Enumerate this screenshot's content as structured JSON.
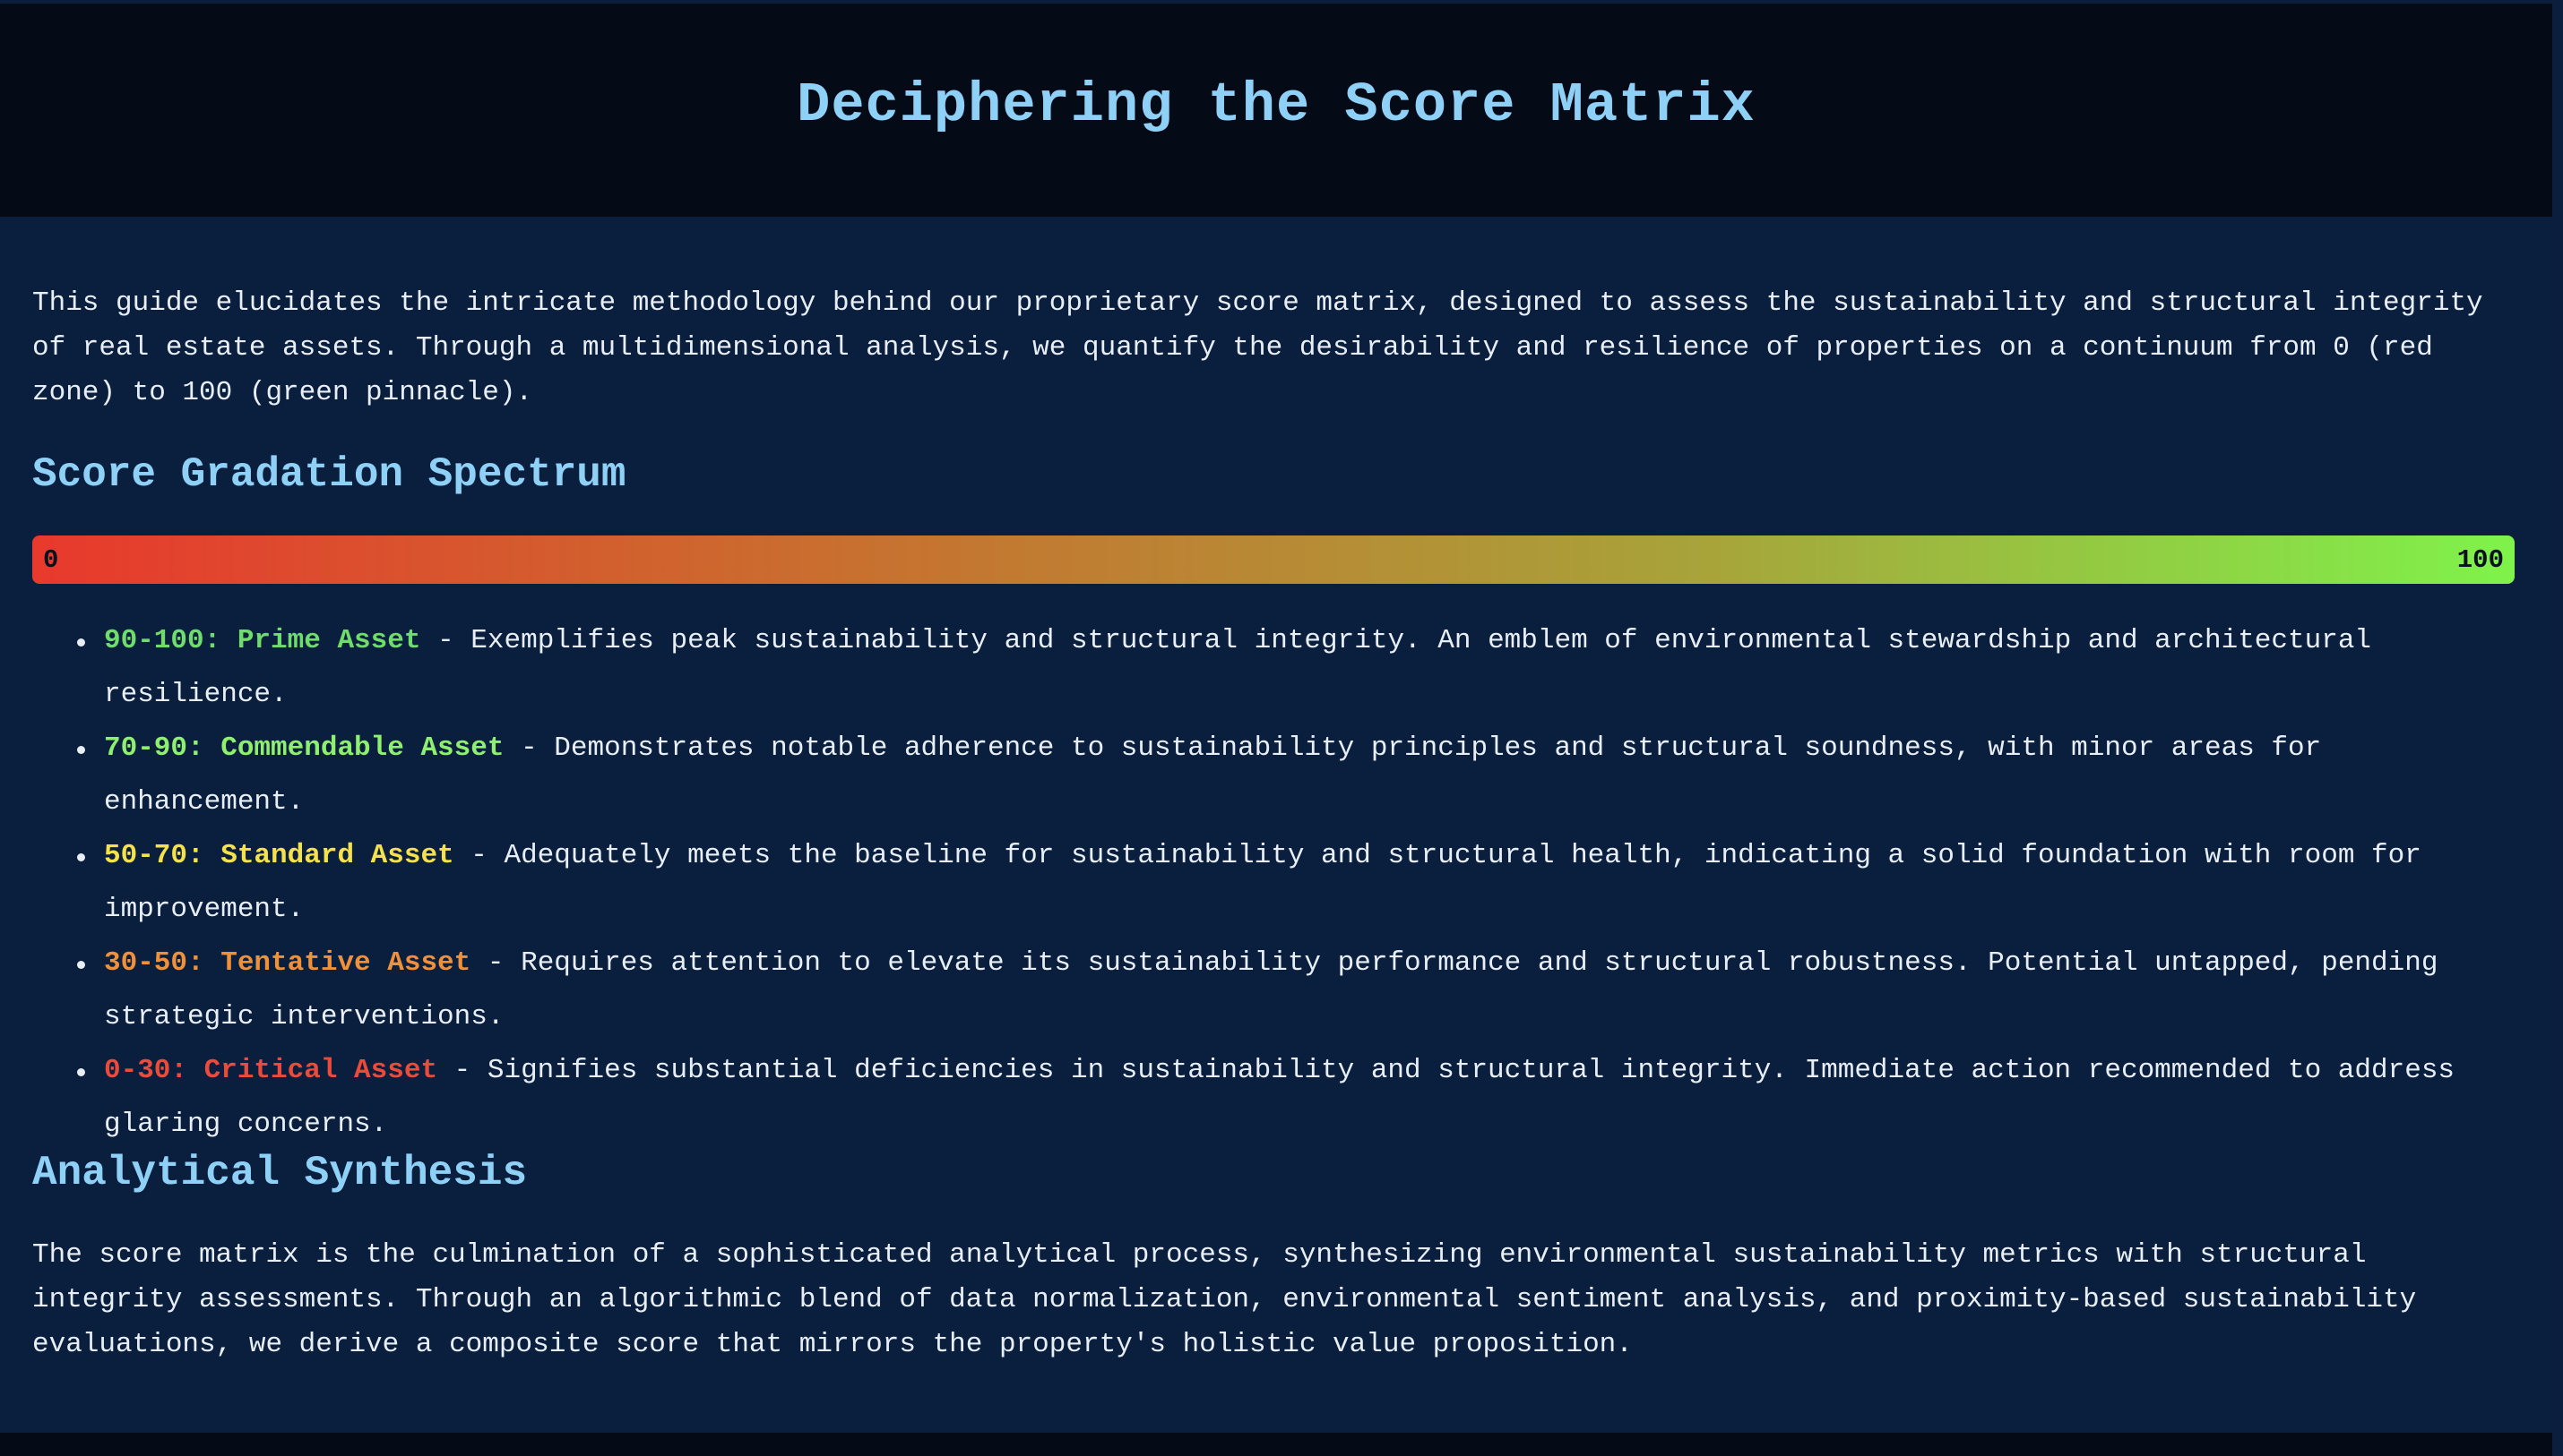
{
  "header": {
    "title": "Deciphering the Score Matrix"
  },
  "intro": "This guide elucidates the intricate methodology behind our proprietary score matrix, designed to assess the sustainability and structural integrity of real estate assets. Through a multidimensional analysis, we quantify the desirability and resilience of properties on a continuum from 0 (red zone) to 100 (green pinnacle).",
  "spectrum": {
    "heading": "Score Gradation Spectrum",
    "bar_min": "0",
    "bar_max": "100",
    "gradient_colors": [
      "#e8392d",
      "#c8702f",
      "#a8a33a",
      "#7ff24b"
    ]
  },
  "tiers": [
    {
      "label": "90-100: Prime Asset",
      "color": "#6fdc6b",
      "description": " - Exemplifies peak sustainability and structural integrity. An emblem of environmental stewardship and architectural resilience."
    },
    {
      "label": "70-90: Commendable Asset",
      "color": "#8ef06e",
      "description": " - Demonstrates notable adherence to sustainability principles and structural soundness, with minor areas for enhancement."
    },
    {
      "label": "50-70: Standard Asset",
      "color": "#f5e14a",
      "description": " - Adequately meets the baseline for sustainability and structural health, indicating a solid foundation with room for improvement."
    },
    {
      "label": "30-50: Tentative Asset",
      "color": "#f0913a",
      "description": " - Requires attention to elevate its sustainability performance and structural robustness. Potential untapped, pending strategic interventions."
    },
    {
      "label": "0-30: Critical Asset",
      "color": "#ec4b3c",
      "description": " - Signifies substantial deficiencies in sustainability and structural integrity. Immediate action recommended to address glaring concerns."
    }
  ],
  "synthesis": {
    "heading": "Analytical Synthesis",
    "body": "The score matrix is the culmination of a sophisticated analytical process, synthesizing environmental sustainability metrics with structural integrity assessments. Through an algorithmic blend of data normalization, environmental sentiment analysis, and proximity-based sustainability evaluations, we derive a composite score that mirrors the property's holistic value proposition."
  }
}
